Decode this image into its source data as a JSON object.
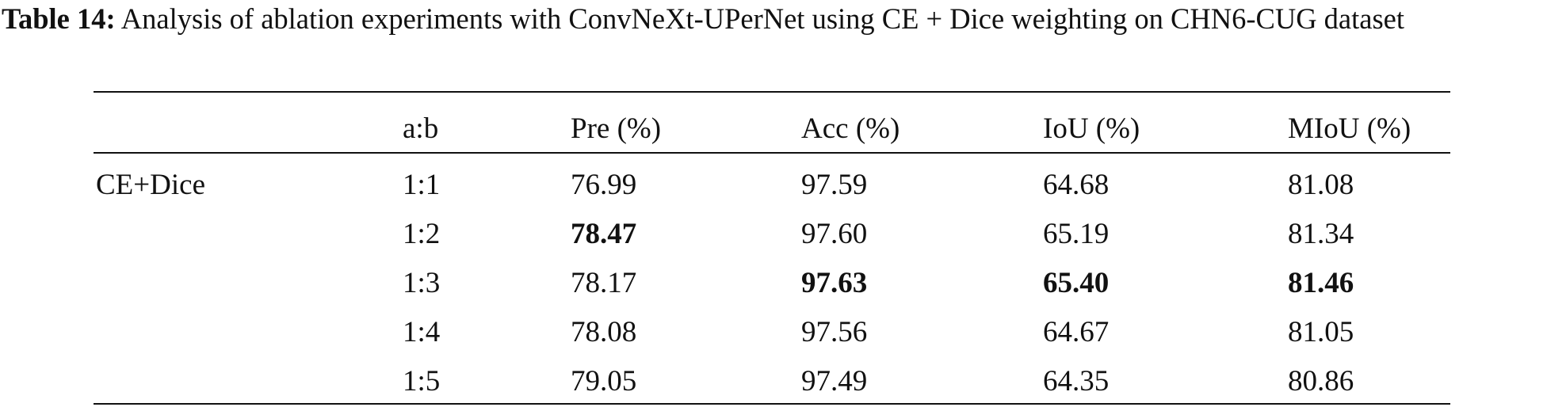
{
  "caption": {
    "label": "Table 14:",
    "text": "Analysis of ablation experiments with ConvNeXt-UPerNet using CE + Dice weighting on CHN6-CUG dataset"
  },
  "table": {
    "header": [
      "a:b",
      "Pre (%)",
      "Acc (%)",
      "IoU (%)",
      "MIoU (%)"
    ],
    "group": "CE+Dice",
    "rows": [
      [
        "1:1",
        "76.99",
        "97.59",
        "64.68",
        "81.08"
      ],
      [
        "1:2",
        "78.47",
        "97.60",
        "65.19",
        "81.34"
      ],
      [
        "1:3",
        "78.17",
        "97.63",
        "65.40",
        "81.46"
      ],
      [
        "1:4",
        "78.08",
        "97.56",
        "64.67",
        "81.05"
      ],
      [
        "1:5",
        "79.05",
        "97.49",
        "64.35",
        "80.86"
      ]
    ],
    "bold": [
      [
        1,
        1
      ],
      [
        2,
        2
      ],
      [
        2,
        3
      ],
      [
        2,
        4
      ]
    ]
  }
}
